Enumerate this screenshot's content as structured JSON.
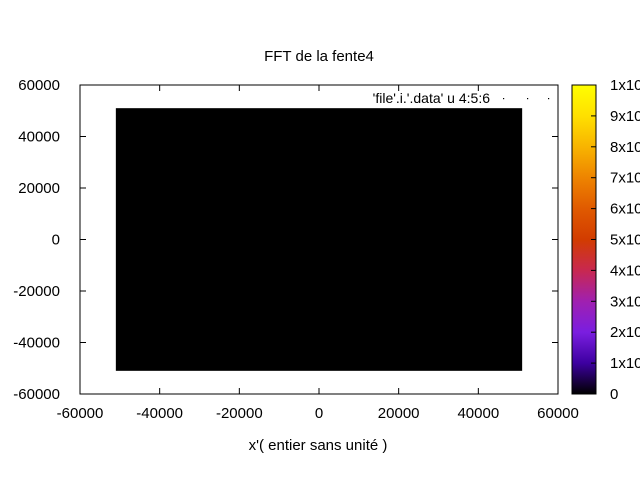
{
  "chart_data": {
    "type": "heatmap",
    "title": "FFT de la fente4",
    "xlabel": "x'( entier sans unité )",
    "ylabel": "",
    "xlim": [
      -60000,
      60000
    ],
    "ylim": [
      -60000,
      60000
    ],
    "x_ticks": [
      "-60000",
      "-40000",
      "-20000",
      "0",
      "20000",
      "40000",
      "60000"
    ],
    "y_ticks": [
      "60000",
      "40000",
      "20000",
      "0",
      "-20000",
      "-40000",
      "-60000"
    ],
    "data_region": {
      "x": [
        -51000,
        51000
      ],
      "y": [
        -51000,
        51000
      ],
      "value": 0
    },
    "legend": {
      "label": "'file'.i.'.data' u 4:5:6",
      "placement": "top-right"
    },
    "colorbar": {
      "palette": "gnuplot black-purple-red-orange-yellow",
      "tick_labels": [
        "1x10",
        "9x10",
        "8x10",
        "7x10",
        "6x10",
        "5x10",
        "4x10",
        "3x10",
        "2x10",
        "1x10",
        "0"
      ],
      "colors": [
        "#000000",
        "#3d00a0",
        "#7a1ee0",
        "#a020b0",
        "#c82850",
        "#d23c00",
        "#e05a00",
        "#ee8400",
        "#f8b400",
        "#ffe000",
        "#ffff00"
      ]
    },
    "grid": false
  }
}
